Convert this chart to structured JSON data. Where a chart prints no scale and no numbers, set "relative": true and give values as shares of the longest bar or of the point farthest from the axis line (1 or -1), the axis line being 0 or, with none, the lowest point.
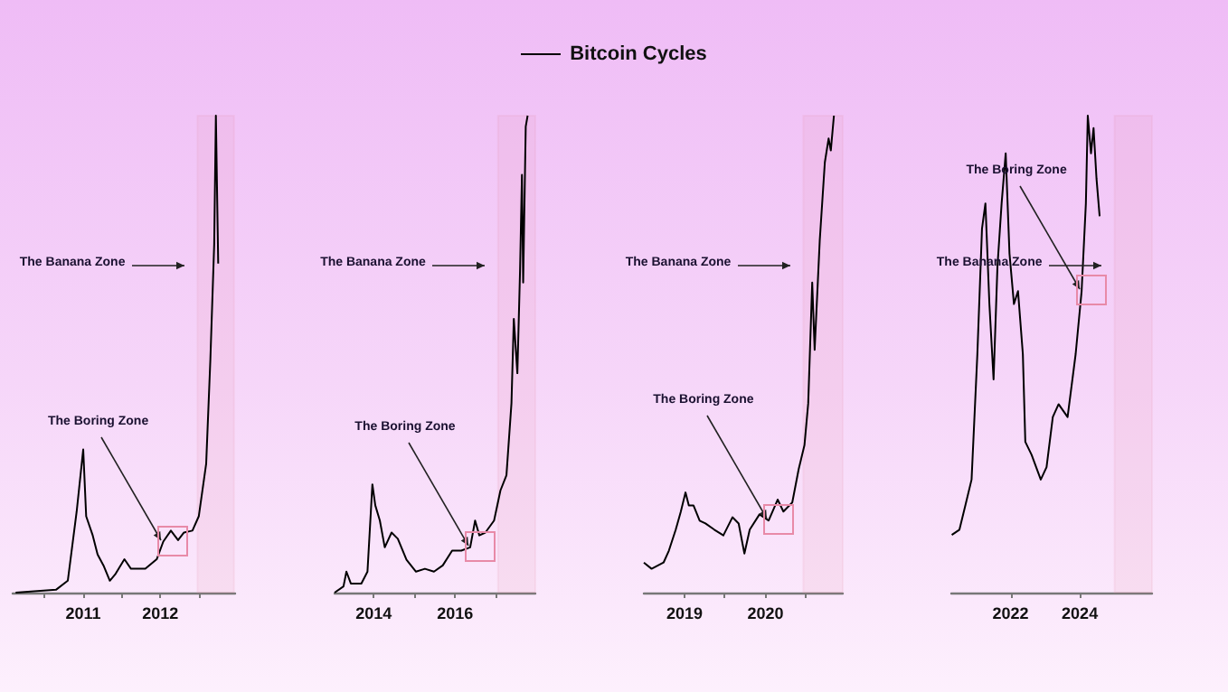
{
  "chart_data": [
    {
      "type": "line",
      "legend": "top",
      "relative": true,
      "marker": "none",
      "x": [
        "2010-02-15",
        "2010-08-25",
        "2010-10-20",
        "2010-12-01",
        "2011-01-01",
        "2011-01-15",
        "2011-02-15",
        "2011-03-10",
        "2011-04-07",
        "2011-05-07",
        "2011-06-01",
        "2011-07-15",
        "2011-08-15",
        "2011-10-22",
        "2011-12-15",
        "2012-01-15",
        "2012-02-20",
        "2012-03-25",
        "2012-04-22",
        "2012-06-01",
        "2012-07-01",
        "2012-08-05",
        "2012-08-25",
        "2012-09-12",
        "2012-09-20",
        "2012-10-01"
      ],
      "series": [
        {
          "name": "Bitcoin Cycles",
          "color": "#000000",
          "values": [
            0,
            0.006,
            0.025,
            0.17,
            0.3,
            0.16,
            0.12,
            0.08,
            0.057,
            0.025,
            0.038,
            0.07,
            0.05,
            0.05,
            0.07,
            0.107,
            0.13,
            0.11,
            0.126,
            0.13,
            0.16,
            0.27,
            0.49,
            0.73,
            1,
            0.69
          ]
        }
      ],
      "xlim": [
        "2010-02-01",
        "2012-12-20"
      ],
      "xticks": [
        {
          "value": "2010-07-01",
          "label": null
        },
        {
          "value": "2011-01-01",
          "label": "2011"
        },
        {
          "value": "2011-07-01",
          "label": null
        },
        {
          "value": "2012-01-01",
          "label": "2012"
        },
        {
          "value": "2012-07-01",
          "label": null
        }
      ],
      "annotations": [
        {
          "text": "The Boring Zone",
          "x": "2012-01-15",
          "y": 0.107
        }
      ],
      "bands": [
        {
          "axis": "x",
          "from": "2012-06-25",
          "to": "2012-12-15",
          "label": "The Banana Zone",
          "color": "#e88aa8"
        }
      ]
    },
    {
      "type": "line",
      "relative": true,
      "marker": "none",
      "x": [
        "2013-01-15",
        "2013-04-05",
        "2013-05-01",
        "2013-06-10",
        "2013-09-12",
        "2013-11-06",
        "2013-12-20",
        "2014-01-15",
        "2014-02-25",
        "2014-04-10",
        "2014-06-10",
        "2014-08-05",
        "2014-10-22",
        "2015-01-15",
        "2015-04-05",
        "2015-06-25",
        "2015-09-12",
        "2015-12-05",
        "2016-02-25",
        "2016-05-15",
        "2016-06-28",
        "2016-08-05",
        "2016-09-28",
        "2016-12-15",
        "2017-02-10",
        "2017-04-05",
        "2017-05-20",
        "2017-06-10",
        "2017-07-12",
        "2017-08-05",
        "2017-08-22",
        "2017-09-02",
        "2017-09-25",
        "2017-10-12"
      ],
      "series": [
        {
          "color": "#000000",
          "values": [
            0,
            0.013,
            0.044,
            0.019,
            0.019,
            0.044,
            0.227,
            0.183,
            0.151,
            0.095,
            0.126,
            0.113,
            0.069,
            0.044,
            0.05,
            0.044,
            0.057,
            0.088,
            0.088,
            0.095,
            0.151,
            0.12,
            0.126,
            0.151,
            0.214,
            0.246,
            0.397,
            0.574,
            0.46,
            0.675,
            0.876,
            0.65,
            0.977,
            1
          ]
        }
      ],
      "xlim": [
        "2013-01-15",
        "2017-12-20"
      ],
      "xticks": [
        {
          "value": "2014-01-01",
          "label": "2014"
        },
        {
          "value": "2015-01-01",
          "label": null
        },
        {
          "value": "2016-01-01",
          "label": "2016"
        },
        {
          "value": "2017-01-01",
          "label": null
        }
      ],
      "annotations": [
        {
          "text": "The Boring Zone",
          "x": "2016-05-15",
          "y": 0.095
        }
      ],
      "bands": [
        {
          "axis": "x",
          "from": "2017-01-20",
          "to": "2017-12-20",
          "label": "The Banana Zone",
          "color": "#e88aa8"
        }
      ]
    },
    {
      "type": "line",
      "relative": true,
      "marker": "none",
      "x": [
        "2018-07-01",
        "2018-08-05",
        "2018-09-28",
        "2018-10-22",
        "2018-11-22",
        "2018-12-15",
        "2019-01-05",
        "2019-01-20",
        "2019-02-10",
        "2019-03-10",
        "2019-04-05",
        "2019-05-15",
        "2019-06-25",
        "2019-08-05",
        "2019-09-02",
        "2019-09-28",
        "2019-10-22",
        "2019-12-05",
        "2020-01-15",
        "2020-02-25",
        "2020-03-22",
        "2020-05-01",
        "2020-05-30",
        "2020-06-25",
        "2020-07-12",
        "2020-07-30",
        "2020-08-10",
        "2020-09-02",
        "2020-09-25",
        "2020-10-12",
        "2020-10-22",
        "2020-11-05"
      ],
      "series": [
        {
          "color": "#000000",
          "values": [
            0.063,
            0.05,
            0.063,
            0.088,
            0.132,
            0.17,
            0.21,
            0.183,
            0.183,
            0.151,
            0.145,
            0.132,
            0.12,
            0.158,
            0.145,
            0.082,
            0.132,
            0.164,
            0.151,
            0.195,
            0.17,
            0.189,
            0.259,
            0.309,
            0.397,
            0.65,
            0.509,
            0.738,
            0.902,
            0.952,
            0.927,
            1
          ]
        }
      ],
      "xlim": [
        "2018-07-01",
        "2020-12-15"
      ],
      "xticks": [
        {
          "value": "2019-01-01",
          "label": "2019"
        },
        {
          "value": "2019-07-01",
          "label": null
        },
        {
          "value": "2020-01-01",
          "label": "2020"
        },
        {
          "value": "2020-07-01",
          "label": null
        }
      ],
      "annotations": [
        {
          "text": "The Boring Zone",
          "x": "2020-01-15",
          "y": 0.151
        }
      ],
      "bands": [
        {
          "axis": "x",
          "from": "2020-06-20",
          "to": "2020-12-15",
          "label": "The Banana Zone",
          "color": "#e88aa8"
        }
      ]
    },
    {
      "type": "line",
      "relative": true,
      "marker": "none",
      "x": [
        "2020-04-20",
        "2020-07-10",
        "2020-09-12",
        "2020-11-15",
        "2021-01-15",
        "2021-03-05",
        "2021-04-10",
        "2021-05-22",
        "2021-07-05",
        "2021-08-15",
        "2021-09-28",
        "2021-11-10",
        "2021-12-20",
        "2022-02-05",
        "2022-03-20",
        "2022-05-10",
        "2022-06-05",
        "2022-08-10",
        "2022-11-15",
        "2023-01-15",
        "2023-03-22",
        "2023-05-22",
        "2023-08-25",
        "2023-11-18",
        "2024-01-20",
        "2024-03-05",
        "2024-03-25",
        "2024-04-28",
        "2024-05-25",
        "2024-06-25",
        "2024-07-28"
      ],
      "series": [
        {
          "color": "#000000",
          "values": [
            0.121,
            0.132,
            0.184,
            0.237,
            0.5,
            0.763,
            0.816,
            0.605,
            0.447,
            0.684,
            0.816,
            0.921,
            0.711,
            0.605,
            0.632,
            0.5,
            0.316,
            0.289,
            0.237,
            0.263,
            0.368,
            0.395,
            0.368,
            0.5,
            0.632,
            0.816,
            1,
            0.921,
            0.974,
            0.868,
            0.789
          ]
        }
      ],
      "xlim": [
        "2020-04-15",
        "2026-02-01"
      ],
      "xticks": [
        {
          "value": "2022-01-01",
          "label": "2022"
        },
        {
          "value": "2024-01-01",
          "label": "2024"
        }
      ],
      "annotations": [
        {
          "text": "The Boring Zone",
          "x": "2024-01-20",
          "y": 0.632
        }
      ],
      "bands": [
        {
          "axis": "x",
          "from": "2025-01-01",
          "to": "2026-02-01",
          "label": "The Banana Zone",
          "color": "#e88aa8"
        }
      ]
    }
  ]
}
